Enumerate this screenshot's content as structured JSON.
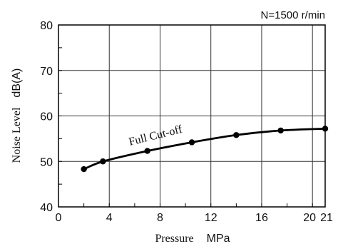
{
  "chart_data": {
    "type": "line",
    "annotation_top_right": "N=1500 r/min",
    "series_label": "Full Cut-off",
    "xlabel_main": "Pressure",
    "xlabel_unit": "MPa",
    "ylabel_main": "Noise Level",
    "ylabel_unit": "dB(A)",
    "xlim": [
      0,
      21
    ],
    "ylim": [
      40,
      80
    ],
    "x_ticks": [
      0,
      4,
      8,
      12,
      16,
      20,
      21
    ],
    "y_ticks": [
      40,
      50,
      60,
      70,
      80
    ],
    "grid": true,
    "series": [
      {
        "x": [
          2.0,
          3.5,
          7.0,
          10.5,
          14.0,
          17.5,
          21.0
        ],
        "y": [
          48.3,
          50.0,
          52.3,
          54.2,
          55.8,
          56.8,
          57.2
        ],
        "color": "#000000"
      }
    ]
  }
}
